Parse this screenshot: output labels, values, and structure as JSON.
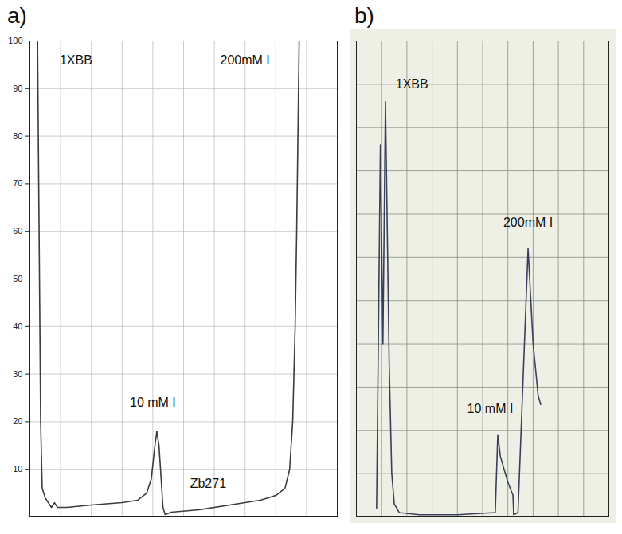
{
  "chart_data": [
    {
      "type": "line",
      "title": "a)",
      "color": "#3c3c3c",
      "grid": true,
      "tick_labels": "y",
      "xlim": [
        0,
        100
      ],
      "xticks": [
        0,
        10,
        20,
        30,
        40,
        50,
        60,
        70,
        80,
        90,
        100
      ],
      "ylim": [
        0,
        100
      ],
      "yticks": [
        10,
        20,
        30,
        40,
        50,
        60,
        70,
        80,
        90,
        100
      ],
      "x": [
        2.5,
        3,
        3.5,
        4,
        5,
        7,
        8,
        9,
        12,
        20,
        30,
        35,
        38,
        39.5,
        40.5,
        41.3,
        42,
        42.7,
        43.3,
        44,
        46,
        55,
        65,
        75,
        80,
        83,
        84.5,
        85.5,
        86.3,
        86.8,
        87.2,
        87.6
      ],
      "values": [
        100,
        60,
        20,
        6,
        4,
        2,
        3,
        2,
        2,
        2.5,
        3,
        3.5,
        5,
        8,
        14,
        18,
        15,
        8,
        2,
        0.5,
        1,
        1.5,
        2.5,
        3.5,
        4.5,
        6,
        10,
        20,
        40,
        60,
        80,
        100
      ],
      "annotations": [
        {
          "text": "1XBB",
          "x": 15,
          "y": 96
        },
        {
          "text": "10 mM I",
          "x": 40,
          "y": 24
        },
        {
          "text": "200mM I",
          "x": 70,
          "y": 96
        },
        {
          "text": "Zb271",
          "x": 58,
          "y": 7
        }
      ]
    },
    {
      "type": "line",
      "title": "b)",
      "color": "#3a3f5a",
      "grid": true,
      "tick_labels": false,
      "xlim": [
        0,
        100
      ],
      "xticks": [
        0,
        10,
        20,
        30,
        40,
        50,
        60,
        70,
        80,
        90,
        100
      ],
      "ylim": [
        0,
        110
      ],
      "yticks": [
        0,
        10,
        20,
        30,
        40,
        50,
        60,
        70,
        80,
        90,
        100,
        110
      ],
      "x": [
        8,
        9.5,
        10.5,
        11.5,
        13,
        14,
        15,
        17,
        25,
        40,
        55,
        56,
        57,
        60,
        62,
        62.3,
        64,
        68,
        70,
        72,
        73
      ],
      "values": [
        2,
        86,
        40,
        96,
        35,
        10,
        3,
        1,
        0.5,
        0.5,
        1,
        19,
        14,
        8,
        5,
        0.5,
        1,
        62,
        40,
        28,
        26
      ],
      "annotations": [
        {
          "text": "1XBB",
          "x": 22,
          "y": 100
        },
        {
          "text": "200mM I",
          "x": 68,
          "y": 68
        },
        {
          "text": "10 mM I",
          "x": 53,
          "y": 25
        }
      ]
    }
  ]
}
